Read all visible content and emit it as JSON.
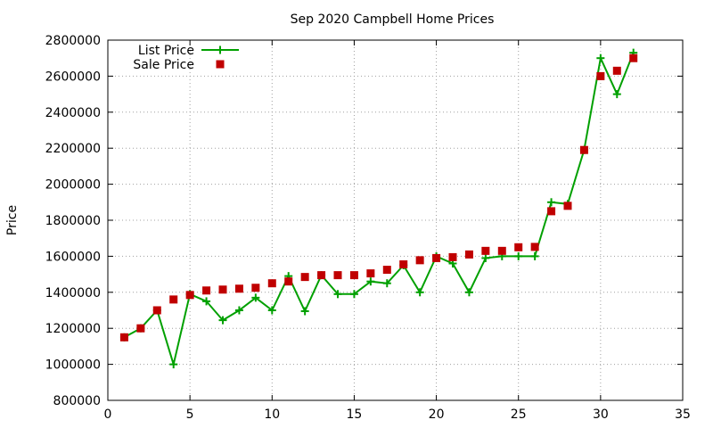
{
  "chart_data": {
    "type": "line",
    "title": "Sep 2020 Campbell Home Prices",
    "xlabel": "",
    "ylabel": "Price",
    "xlim": [
      0,
      35
    ],
    "ylim": [
      800000,
      2800000
    ],
    "xticks": [
      0,
      5,
      10,
      15,
      20,
      25,
      30,
      35
    ],
    "yticks": [
      800000,
      1000000,
      1200000,
      1400000,
      1600000,
      1800000,
      2000000,
      2200000,
      2400000,
      2600000,
      2800000
    ],
    "grid": true,
    "legend_position": "top-left",
    "x": [
      1,
      2,
      3,
      4,
      5,
      6,
      7,
      8,
      9,
      10,
      11,
      12,
      13,
      14,
      15,
      16,
      17,
      18,
      19,
      20,
      21,
      22,
      23,
      24,
      25,
      26,
      27,
      28,
      29,
      30,
      31,
      32
    ],
    "series": [
      {
        "name": "List Price",
        "style": "linespoints",
        "marker": "plus",
        "color": "#00a000",
        "values": [
          1150000,
          1200000,
          1300000,
          1000000,
          1390000,
          1350000,
          1245000,
          1300000,
          1370000,
          1300000,
          1490000,
          1295000,
          1495000,
          1390000,
          1390000,
          1460000,
          1450000,
          1550000,
          1400000,
          1600000,
          1560000,
          1400000,
          1590000,
          1600000,
          1600000,
          1600000,
          1900000,
          1890000,
          2190000,
          2700000,
          2500000,
          2730000
        ]
      },
      {
        "name": "Sale Price",
        "style": "points",
        "marker": "square",
        "color": "#c00000",
        "values": [
          1150000,
          1200000,
          1300000,
          1360000,
          1385000,
          1410000,
          1415000,
          1420000,
          1425000,
          1450000,
          1460000,
          1485000,
          1495000,
          1495000,
          1495000,
          1505000,
          1525000,
          1555000,
          1578000,
          1590000,
          1595000,
          1610000,
          1630000,
          1630000,
          1650000,
          1652000,
          1850000,
          1880000,
          2190000,
          2600000,
          2630000,
          2700000
        ]
      }
    ]
  }
}
